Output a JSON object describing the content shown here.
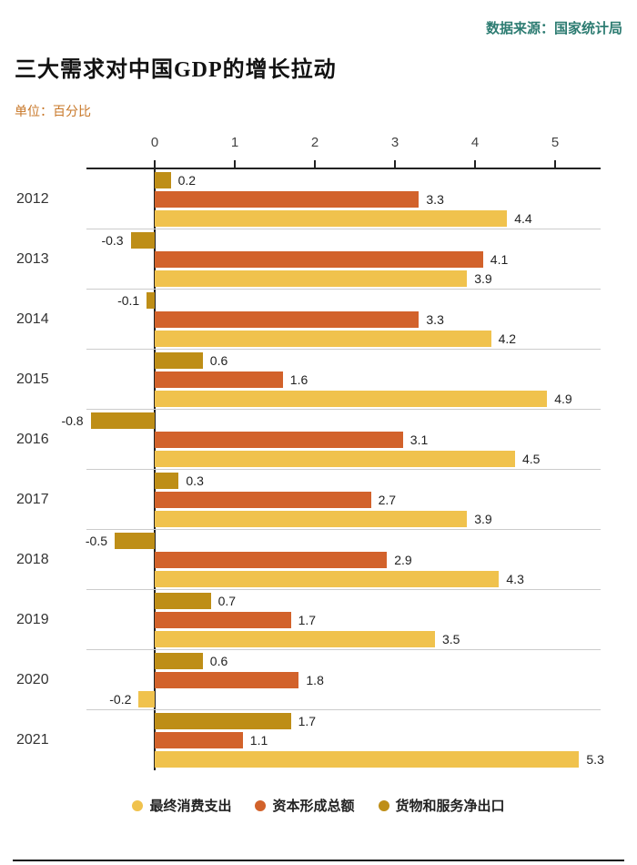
{
  "source": "数据来源：国家统计局",
  "title": "三大需求对中国GDP的增长拉动",
  "unit_label": "单位：百分比",
  "colors": {
    "consumption": "#F0C24D",
    "capital": "#D2622B",
    "net_exports": "#BE8E17",
    "source_text": "#2D7C72",
    "unit_text": "#C8782A",
    "axis": "#222222",
    "separator": "#cccccc"
  },
  "chart_data": {
    "type": "bar",
    "orientation": "horizontal",
    "title": "三大需求对中国GDP的增长拉动",
    "unit": "百分比",
    "xlim": [
      -1,
      5.6
    ],
    "x_ticks": [
      0,
      1,
      2,
      3,
      4,
      5
    ],
    "grid": false,
    "categories": [
      "2012",
      "2013",
      "2014",
      "2015",
      "2016",
      "2017",
      "2018",
      "2019",
      "2020",
      "2021"
    ],
    "row_order": [
      "net_exports",
      "capital",
      "consumption"
    ],
    "series": [
      {
        "key": "net_exports",
        "name": "货物和服务净出口",
        "values": [
          0.2,
          -0.3,
          -0.1,
          0.6,
          -0.8,
          0.3,
          -0.5,
          0.7,
          0.6,
          1.7
        ]
      },
      {
        "key": "capital",
        "name": "资本形成总额",
        "values": [
          3.3,
          4.1,
          3.3,
          1.6,
          3.1,
          2.7,
          2.9,
          1.7,
          1.8,
          1.1
        ]
      },
      {
        "key": "consumption",
        "name": "最终消费支出",
        "values": [
          4.4,
          3.9,
          4.2,
          4.9,
          4.5,
          3.9,
          4.3,
          3.5,
          -0.2,
          5.3
        ]
      }
    ],
    "legend": [
      {
        "key": "consumption",
        "label": "最终消费支出"
      },
      {
        "key": "capital",
        "label": "资本形成总额"
      },
      {
        "key": "net_exports",
        "label": "货物和服务净出口"
      }
    ],
    "legend_position": "bottom"
  }
}
